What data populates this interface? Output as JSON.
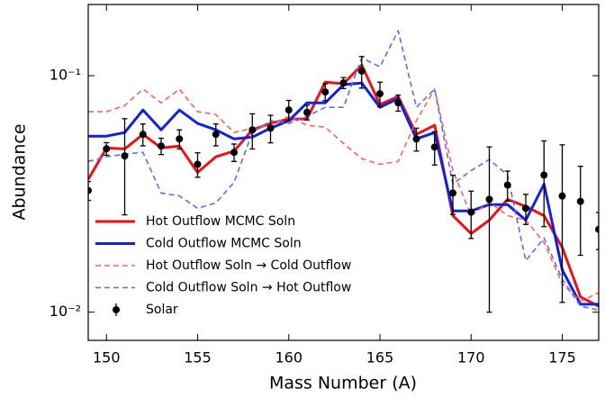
{
  "chart_data": {
    "type": "line",
    "xlabel": "Mass Number (A)",
    "ylabel": "Abundance",
    "x": [
      149,
      150,
      151,
      152,
      153,
      154,
      155,
      156,
      157,
      158,
      159,
      160,
      161,
      162,
      163,
      164,
      165,
      166,
      167,
      168,
      169,
      170,
      171,
      172,
      173,
      174,
      175,
      176,
      177
    ],
    "xlim": [
      149,
      177
    ],
    "xticks": [
      150,
      155,
      160,
      165,
      170,
      175
    ],
    "ylim": [
      0.0076,
      0.2
    ],
    "ylog": true,
    "yticks": [
      {
        "value": 0.01,
        "label": "10⁻²"
      },
      {
        "value": 0.1,
        "label": "10⁻¹"
      }
    ],
    "legend": "lower left",
    "series": [
      {
        "name": "Hot Outflow MCMC Soln",
        "color": "#ee1111",
        "style": "solid",
        "values": [
          0.0364,
          0.0495,
          0.049,
          0.0565,
          0.0495,
          0.0504,
          0.039,
          0.0454,
          0.048,
          0.059,
          0.0628,
          0.0656,
          0.0656,
          0.094,
          0.0924,
          0.111,
          0.0755,
          0.0817,
          0.0565,
          0.0617,
          0.0256,
          0.0215,
          0.0245,
          0.03,
          0.028,
          0.0256,
          0.0188,
          0.0116,
          0.0106
        ]
      },
      {
        "name": "Cold Outflow MCMC Soln",
        "color": "#1122dd",
        "style": "solid",
        "values": [
          0.0555,
          0.0555,
          0.0575,
          0.0716,
          0.059,
          0.0716,
          0.0628,
          0.059,
          0.054,
          0.055,
          0.06,
          0.0645,
          0.0768,
          0.0768,
          0.0916,
          0.0932,
          0.0735,
          0.08,
          0.054,
          0.0575,
          0.0268,
          0.0268,
          0.0285,
          0.0285,
          0.0245,
          0.0348,
          0.0151,
          0.0108,
          0.0108
        ]
      },
      {
        "name": "Hot Outflow Soln → Cold Outflow",
        "color": "#f06666",
        "style": "dashed",
        "values": [
          0.0704,
          0.0704,
          0.0748,
          0.0877,
          0.0768,
          0.0877,
          0.0704,
          0.0685,
          0.0575,
          0.06,
          0.0617,
          0.0673,
          0.0617,
          0.0606,
          0.0517,
          0.0446,
          0.0422,
          0.0434,
          0.0645,
          0.0877,
          0.0397,
          0.0256,
          0.0292,
          0.0256,
          0.0245,
          0.0197,
          0.0132,
          0.0111,
          0.0121
        ]
      },
      {
        "name": "Cold Outflow Soln → Hot Outflow",
        "color": "#6666ee",
        "style": "dashed",
        "values": [
          0.0434,
          0.0454,
          0.0466,
          0.0474,
          0.0319,
          0.031,
          0.0275,
          0.029,
          0.0354,
          0.0575,
          0.0645,
          0.0628,
          0.0673,
          0.0735,
          0.0735,
          0.119,
          0.109,
          0.155,
          0.0735,
          0.0877,
          0.0348,
          0.0397,
          0.0442,
          0.038,
          0.0165,
          0.0206,
          0.0138,
          0.0106,
          0.0102
        ]
      },
      {
        "name": "Solar",
        "color": "#000000",
        "style": "errorbar",
        "values": [
          0.0327,
          0.0491,
          0.0458,
          0.0565,
          0.0504,
          0.054,
          0.0422,
          0.0565,
          0.0474,
          0.059,
          0.06,
          0.0716,
          0.07,
          0.0854,
          0.0932,
          0.1046,
          0.0839,
          0.0768,
          0.054,
          0.0499,
          0.0319,
          0.0265,
          0.03,
          0.0345,
          0.0275,
          0.038,
          0.031,
          0.0294,
          0.0224
        ],
        "errors": [
          0.003,
          0.003,
          0.02,
          0.006,
          0.004,
          0.005,
          0.005,
          0.006,
          0.004,
          0.01,
          0.008,
          0.007,
          0.005,
          0.007,
          0.005,
          0.016,
          0.01,
          0.006,
          0.006,
          0.008,
          0.006,
          0.006,
          0.02,
          0.005,
          0.004,
          0.015,
          0.02,
          0.012,
          0.004
        ]
      }
    ]
  }
}
